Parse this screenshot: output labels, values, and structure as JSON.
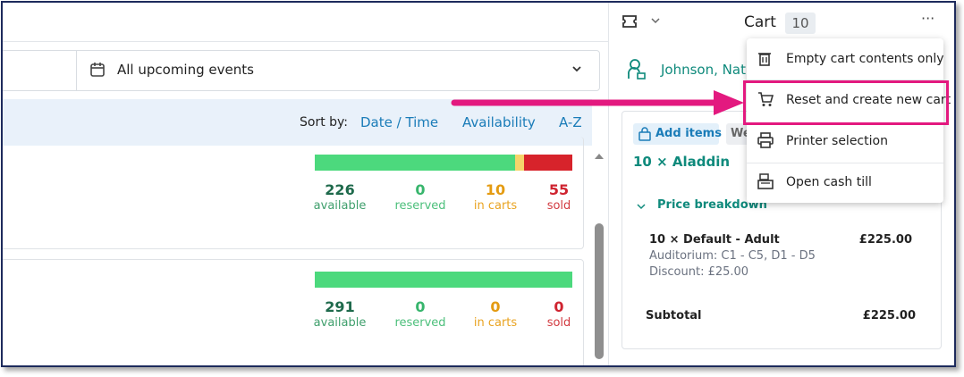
{
  "filter": {
    "label": "All upcoming events"
  },
  "sort": {
    "label": "Sort by:",
    "options": [
      "Date / Time",
      "Availability",
      "A-Z"
    ]
  },
  "events": [
    {
      "stats": [
        {
          "value": 226,
          "label": "available"
        },
        {
          "value": 0,
          "label": "reserved"
        },
        {
          "value": 10,
          "label": "in carts"
        },
        {
          "value": 55,
          "label": "sold"
        }
      ]
    },
    {
      "stats": [
        {
          "value": 291,
          "label": "available"
        },
        {
          "value": 0,
          "label": "reserved"
        },
        {
          "value": 0,
          "label": "in carts"
        },
        {
          "value": 0,
          "label": "sold"
        }
      ]
    }
  ],
  "cart": {
    "title": "Cart",
    "count": 10,
    "customer": "Johnson, Nat",
    "add_items": "Add items",
    "tab": "We",
    "item_title": "10 × Aladdin",
    "breakdown": "Price breakdown",
    "line": {
      "name": "10 × Default - Adult",
      "price": "£225.00",
      "seats": "Auditorium: C1 - C5, D1 - D5",
      "discount": "Discount: £25.00"
    },
    "subtotal_label": "Subtotal",
    "subtotal": "£225.00"
  },
  "menu": {
    "items": [
      "Empty cart contents only",
      "Reset and create new cart",
      "Printer selection",
      "Open cash till"
    ]
  }
}
